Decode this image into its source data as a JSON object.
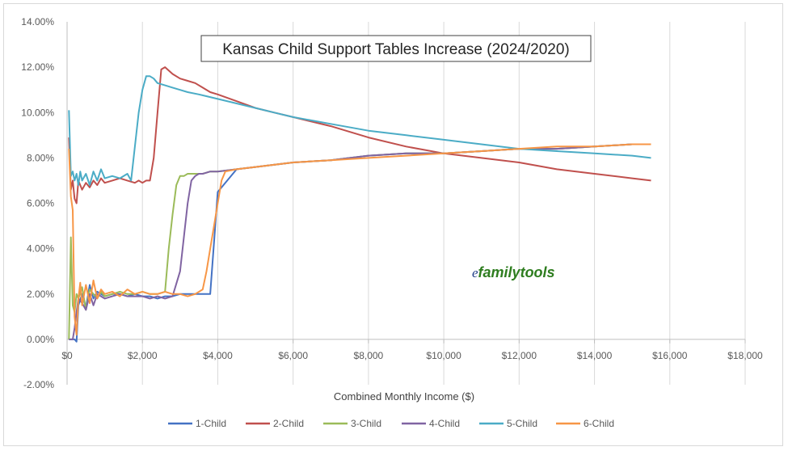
{
  "chart_data": {
    "type": "line",
    "title": "Kansas Child Support Tables Increase (2024/2020)",
    "xlabel": "Combined Monthly Income ($)",
    "ylabel": "",
    "xlim": [
      0,
      18000
    ],
    "ylim": [
      -0.02,
      0.14
    ],
    "x_ticks": [
      0,
      2000,
      4000,
      6000,
      8000,
      10000,
      12000,
      14000,
      16000,
      18000
    ],
    "x_tick_labels": [
      "$0",
      "$2,000",
      "$4,000",
      "$6,000",
      "$8,000",
      "$10,000",
      "$12,000",
      "$14,000",
      "$16,000",
      "$18,000"
    ],
    "y_ticks": [
      -0.02,
      0,
      0.02,
      0.04,
      0.06,
      0.08,
      0.1,
      0.12,
      0.14
    ],
    "y_tick_labels": [
      "-2.00%",
      "0.00%",
      "2.00%",
      "4.00%",
      "6.00%",
      "8.00%",
      "10.00%",
      "12.00%",
      "14.00%"
    ],
    "grid": "vertical",
    "legend": "bottom",
    "watermark": {
      "e": "e",
      "rest": "familytools"
    },
    "colors": {
      "1-Child": "#4472c4",
      "2-Child": "#c0504d",
      "3-Child": "#9bbb59",
      "4-Child": "#8064a2",
      "5-Child": "#4bacc6",
      "6-Child": "#f79646"
    },
    "series": [
      {
        "name": "1-Child",
        "x": [
          50,
          100,
          150,
          200,
          250,
          300,
          400,
          500,
          600,
          700,
          800,
          900,
          1000,
          1200,
          1400,
          1600,
          1800,
          2000,
          2200,
          2400,
          2600,
          2800,
          3000,
          3200,
          3500,
          3800,
          4000,
          4500,
          5000,
          6000,
          7000,
          8000,
          9000,
          10000,
          11000,
          12000,
          13000,
          14000,
          15000,
          15500
        ],
        "y": [
          0.0,
          0.0,
          0.0,
          0.0,
          -0.001,
          0.015,
          0.02,
          0.014,
          0.024,
          0.018,
          0.021,
          0.02,
          0.019,
          0.02,
          0.02,
          0.019,
          0.02,
          0.019,
          0.019,
          0.018,
          0.019,
          0.019,
          0.02,
          0.02,
          0.02,
          0.02,
          0.065,
          0.075,
          0.076,
          0.078,
          0.079,
          0.081,
          0.082,
          0.082,
          0.083,
          0.084,
          0.084,
          0.085,
          0.086,
          0.086
        ]
      },
      {
        "name": "2-Child",
        "x": [
          50,
          100,
          150,
          200,
          250,
          300,
          400,
          500,
          600,
          700,
          800,
          900,
          1000,
          1200,
          1400,
          1600,
          1800,
          1900,
          2000,
          2100,
          2200,
          2300,
          2400,
          2500,
          2600,
          2800,
          3000,
          3200,
          3400,
          3600,
          3800,
          4000,
          4500,
          5000,
          5500,
          6000,
          7000,
          8000,
          9000,
          10000,
          11000,
          12000,
          13000,
          14000,
          15000,
          15500
        ],
        "y": [
          0.089,
          0.066,
          0.07,
          0.062,
          0.06,
          0.07,
          0.066,
          0.069,
          0.067,
          0.07,
          0.068,
          0.071,
          0.069,
          0.07,
          0.071,
          0.07,
          0.069,
          0.07,
          0.069,
          0.07,
          0.07,
          0.08,
          0.1,
          0.119,
          0.12,
          0.117,
          0.115,
          0.114,
          0.113,
          0.111,
          0.109,
          0.108,
          0.105,
          0.102,
          0.1,
          0.098,
          0.094,
          0.089,
          0.085,
          0.082,
          0.08,
          0.078,
          0.075,
          0.073,
          0.071,
          0.07
        ]
      },
      {
        "name": "3-Child",
        "x": [
          50,
          100,
          150,
          200,
          250,
          300,
          400,
          500,
          600,
          700,
          800,
          900,
          1000,
          1200,
          1400,
          1600,
          1800,
          2000,
          2200,
          2400,
          2600,
          2700,
          2800,
          2900,
          3000,
          3100,
          3200,
          3400,
          3600,
          3800,
          4000,
          4500,
          5000,
          6000,
          7000,
          8000,
          9000,
          10000,
          11000,
          12000,
          13000,
          14000,
          15000,
          15500
        ],
        "y": [
          0.0,
          0.045,
          0.015,
          0.012,
          0.02,
          0.018,
          0.023,
          0.013,
          0.022,
          0.02,
          0.018,
          0.021,
          0.019,
          0.02,
          0.021,
          0.02,
          0.02,
          0.021,
          0.02,
          0.02,
          0.021,
          0.04,
          0.055,
          0.068,
          0.072,
          0.072,
          0.073,
          0.073,
          0.073,
          0.074,
          0.074,
          0.075,
          0.076,
          0.078,
          0.079,
          0.081,
          0.082,
          0.082,
          0.083,
          0.084,
          0.084,
          0.085,
          0.086,
          0.086
        ]
      },
      {
        "name": "4-Child",
        "x": [
          50,
          100,
          150,
          200,
          250,
          300,
          400,
          500,
          600,
          700,
          800,
          900,
          1000,
          1200,
          1400,
          1600,
          1800,
          2000,
          2200,
          2400,
          2600,
          2800,
          3000,
          3100,
          3200,
          3300,
          3400,
          3500,
          3600,
          3800,
          4000,
          4500,
          5000,
          6000,
          7000,
          8000,
          9000,
          10000,
          11000,
          12000,
          13000,
          14000,
          15000,
          15500
        ],
        "y": [
          0.0,
          0.0,
          0.0,
          0.005,
          0.012,
          0.018,
          0.016,
          0.013,
          0.02,
          0.015,
          0.02,
          0.019,
          0.018,
          0.019,
          0.02,
          0.019,
          0.019,
          0.019,
          0.018,
          0.019,
          0.018,
          0.019,
          0.03,
          0.045,
          0.06,
          0.07,
          0.072,
          0.073,
          0.073,
          0.074,
          0.074,
          0.075,
          0.076,
          0.078,
          0.079,
          0.081,
          0.082,
          0.082,
          0.083,
          0.084,
          0.084,
          0.085,
          0.086,
          0.086
        ]
      },
      {
        "name": "5-Child",
        "x": [
          50,
          100,
          150,
          200,
          250,
          300,
          350,
          400,
          500,
          600,
          700,
          800,
          900,
          1000,
          1200,
          1400,
          1600,
          1700,
          1800,
          1900,
          2000,
          2100,
          2200,
          2300,
          2400,
          2600,
          2800,
          3000,
          3200,
          3500,
          4000,
          4500,
          5000,
          5500,
          6000,
          7000,
          8000,
          9000,
          10000,
          11000,
          12000,
          13000,
          14000,
          15000,
          15500
        ],
        "y": [
          0.101,
          0.072,
          0.074,
          0.07,
          0.073,
          0.068,
          0.074,
          0.07,
          0.073,
          0.068,
          0.074,
          0.07,
          0.075,
          0.071,
          0.072,
          0.071,
          0.073,
          0.07,
          0.085,
          0.1,
          0.11,
          0.116,
          0.116,
          0.115,
          0.113,
          0.112,
          0.111,
          0.11,
          0.109,
          0.108,
          0.106,
          0.104,
          0.102,
          0.1,
          0.098,
          0.095,
          0.092,
          0.09,
          0.088,
          0.086,
          0.084,
          0.083,
          0.082,
          0.081,
          0.08
        ]
      },
      {
        "name": "6-Child",
        "x": [
          50,
          100,
          150,
          200,
          250,
          300,
          350,
          400,
          500,
          600,
          700,
          800,
          900,
          1000,
          1200,
          1400,
          1600,
          1800,
          2000,
          2200,
          2400,
          2600,
          2800,
          3000,
          3200,
          3400,
          3600,
          3700,
          3800,
          3900,
          4000,
          4100,
          4200,
          4500,
          5000,
          6000,
          7000,
          8000,
          9000,
          10000,
          11000,
          12000,
          13000,
          14000,
          15000,
          15500
        ],
        "y": [
          0.084,
          0.063,
          0.057,
          0.01,
          0.002,
          0.018,
          0.025,
          0.015,
          0.024,
          0.016,
          0.026,
          0.018,
          0.022,
          0.02,
          0.021,
          0.019,
          0.022,
          0.02,
          0.021,
          0.02,
          0.02,
          0.021,
          0.02,
          0.02,
          0.019,
          0.02,
          0.022,
          0.03,
          0.04,
          0.05,
          0.06,
          0.07,
          0.074,
          0.075,
          0.076,
          0.078,
          0.079,
          0.08,
          0.081,
          0.082,
          0.083,
          0.084,
          0.085,
          0.085,
          0.086,
          0.086
        ]
      }
    ]
  }
}
